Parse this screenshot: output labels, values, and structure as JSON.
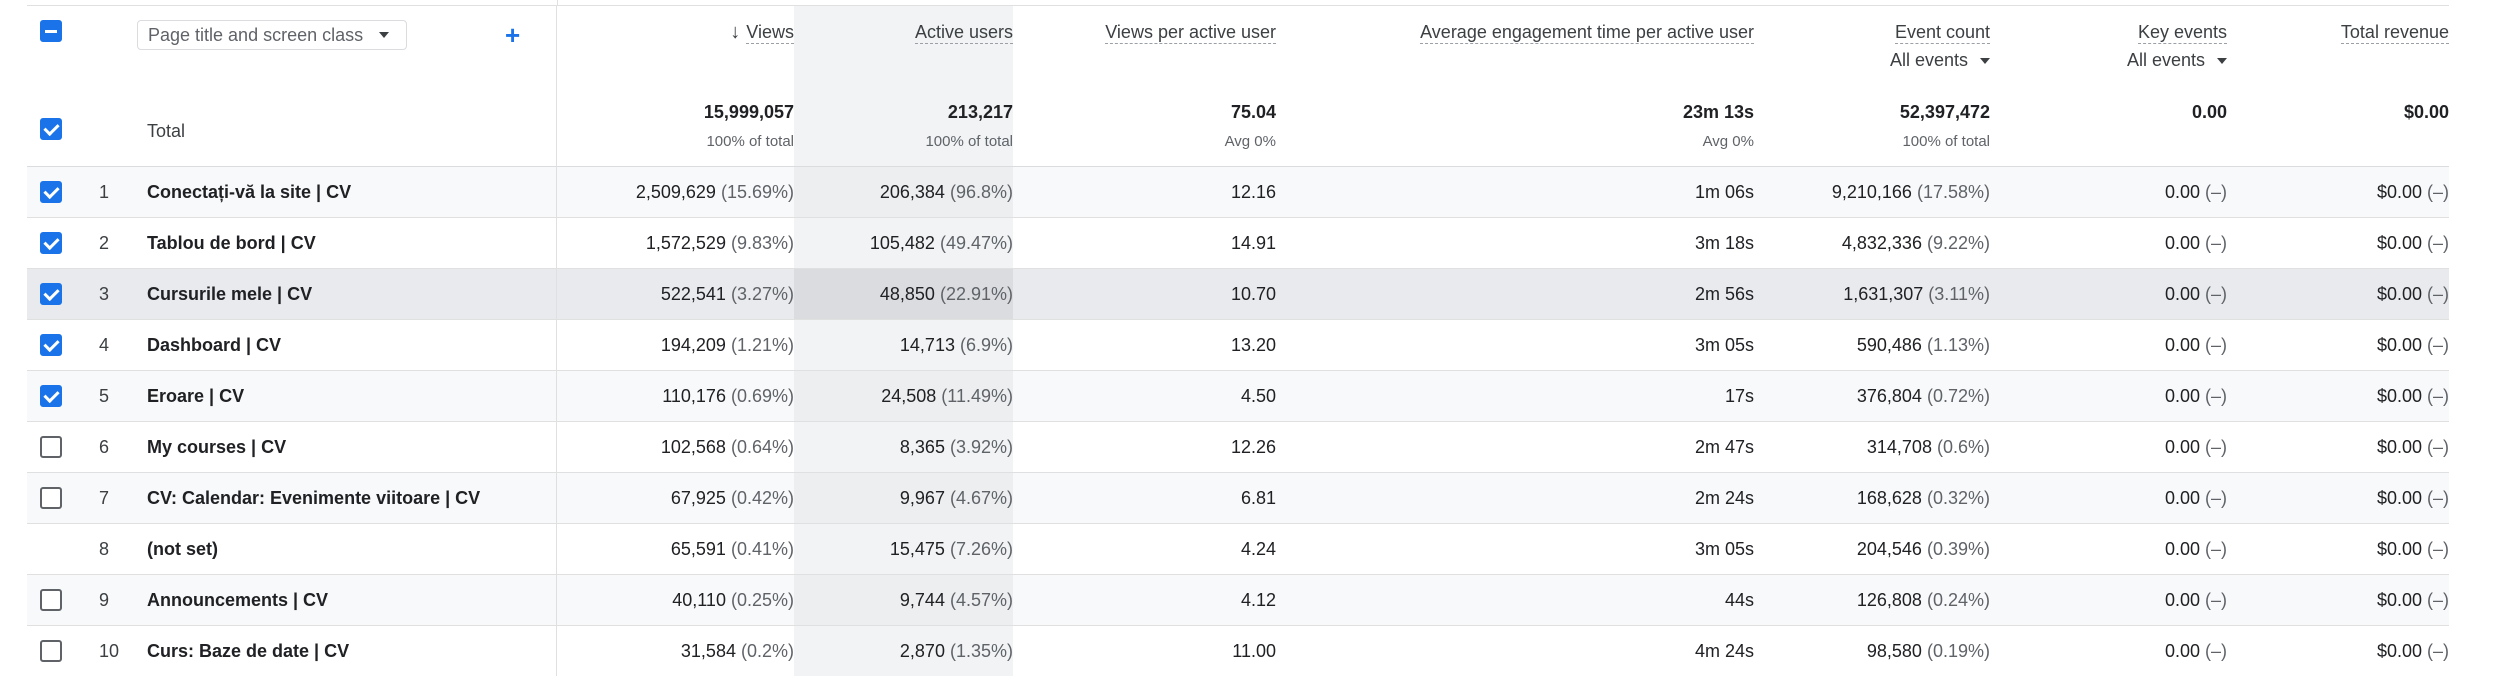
{
  "header": {
    "dimension_selector": "Page title and screen class",
    "columns": {
      "views": "Views",
      "active_users": "Active users",
      "views_per_user": "Views per active user",
      "engagement": "Average engagement time per active user",
      "event_count": "Event count",
      "event_count_filter": "All events",
      "key_events": "Key events",
      "key_events_filter": "All events",
      "revenue": "Total revenue"
    }
  },
  "totals": {
    "label": "Total",
    "views": "15,999,057",
    "views_sub": "100% of total",
    "active_users": "213,217",
    "active_users_sub": "100% of total",
    "views_per_user": "75.04",
    "views_per_user_sub": "Avg 0%",
    "engagement": "23m 13s",
    "engagement_sub": "Avg 0%",
    "event_count": "52,397,472",
    "event_count_sub": "100% of total",
    "key_events": "0.00",
    "revenue": "$0.00"
  },
  "rows": [
    {
      "rank": "1",
      "title": "Conectați-vă la site | CV",
      "views": "2,509,629",
      "views_pct": "(15.69%)",
      "users": "206,384",
      "users_pct": "(96.8%)",
      "vpu": "12.16",
      "eng": "1m 06s",
      "events": "9,210,166",
      "events_pct": "(17.58%)",
      "key": "0.00",
      "key_pct": "(–)",
      "rev": "$0.00",
      "rev_pct": "(–)",
      "checkbox": "checked"
    },
    {
      "rank": "2",
      "title": "Tablou de bord | CV",
      "views": "1,572,529",
      "views_pct": "(9.83%)",
      "users": "105,482",
      "users_pct": "(49.47%)",
      "vpu": "14.91",
      "eng": "3m 18s",
      "events": "4,832,336",
      "events_pct": "(9.22%)",
      "key": "0.00",
      "key_pct": "(–)",
      "rev": "$0.00",
      "rev_pct": "(–)",
      "checkbox": "checked"
    },
    {
      "rank": "3",
      "title": "Cursurile mele | CV",
      "views": "522,541",
      "views_pct": "(3.27%)",
      "users": "48,850",
      "users_pct": "(22.91%)",
      "vpu": "10.70",
      "eng": "2m 56s",
      "events": "1,631,307",
      "events_pct": "(3.11%)",
      "key": "0.00",
      "key_pct": "(–)",
      "rev": "$0.00",
      "rev_pct": "(–)",
      "checkbox": "checked"
    },
    {
      "rank": "4",
      "title": "Dashboard | CV",
      "views": "194,209",
      "views_pct": "(1.21%)",
      "users": "14,713",
      "users_pct": "(6.9%)",
      "vpu": "13.20",
      "eng": "3m 05s",
      "events": "590,486",
      "events_pct": "(1.13%)",
      "key": "0.00",
      "key_pct": "(–)",
      "rev": "$0.00",
      "rev_pct": "(–)",
      "checkbox": "checked"
    },
    {
      "rank": "5",
      "title": "Eroare | CV",
      "views": "110,176",
      "views_pct": "(0.69%)",
      "users": "24,508",
      "users_pct": "(11.49%)",
      "vpu": "4.50",
      "eng": "17s",
      "events": "376,804",
      "events_pct": "(0.72%)",
      "key": "0.00",
      "key_pct": "(–)",
      "rev": "$0.00",
      "rev_pct": "(–)",
      "checkbox": "checked"
    },
    {
      "rank": "6",
      "title": "My courses | CV",
      "views": "102,568",
      "views_pct": "(0.64%)",
      "users": "8,365",
      "users_pct": "(3.92%)",
      "vpu": "12.26",
      "eng": "2m 47s",
      "events": "314,708",
      "events_pct": "(0.6%)",
      "key": "0.00",
      "key_pct": "(–)",
      "rev": "$0.00",
      "rev_pct": "(–)",
      "checkbox": "empty"
    },
    {
      "rank": "7",
      "title": "CV: Calendar: Evenimente viitoare | CV",
      "views": "67,925",
      "views_pct": "(0.42%)",
      "users": "9,967",
      "users_pct": "(4.67%)",
      "vpu": "6.81",
      "eng": "2m 24s",
      "events": "168,628",
      "events_pct": "(0.32%)",
      "key": "0.00",
      "key_pct": "(–)",
      "rev": "$0.00",
      "rev_pct": "(–)",
      "checkbox": "empty"
    },
    {
      "rank": "8",
      "title": "(not set)",
      "views": "65,591",
      "views_pct": "(0.41%)",
      "users": "15,475",
      "users_pct": "(7.26%)",
      "vpu": "4.24",
      "eng": "3m 05s",
      "events": "204,546",
      "events_pct": "(0.39%)",
      "key": "0.00",
      "key_pct": "(–)",
      "rev": "$0.00",
      "rev_pct": "(–)",
      "checkbox": "none"
    },
    {
      "rank": "9",
      "title": "Announcements | CV",
      "views": "40,110",
      "views_pct": "(0.25%)",
      "users": "9,744",
      "users_pct": "(4.57%)",
      "vpu": "4.12",
      "eng": "44s",
      "events": "126,808",
      "events_pct": "(0.24%)",
      "key": "0.00",
      "key_pct": "(–)",
      "rev": "$0.00",
      "rev_pct": "(–)",
      "checkbox": "empty"
    },
    {
      "rank": "10",
      "title": "Curs: Baze de date | CV",
      "views": "31,584",
      "views_pct": "(0.2%)",
      "users": "2,870",
      "users_pct": "(1.35%)",
      "vpu": "11.00",
      "eng": "4m 24s",
      "events": "98,580",
      "events_pct": "(0.19%)",
      "key": "0.00",
      "key_pct": "(–)",
      "rev": "$0.00",
      "rev_pct": "(–)",
      "checkbox": "empty"
    }
  ],
  "highlighted_row": "3"
}
